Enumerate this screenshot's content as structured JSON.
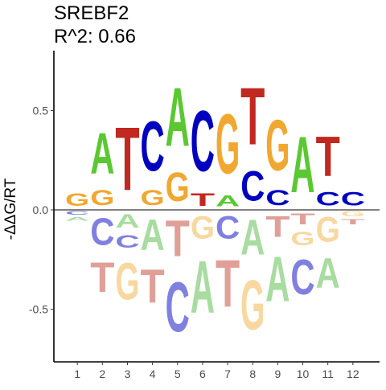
{
  "chart_data": {
    "type": "sequence-logo",
    "title": "SREBF2",
    "subtitle": "R^2: 0.66",
    "ylabel": "-ΔΔG/RT",
    "xlabel": "",
    "ylim": [
      -0.8,
      0.75
    ],
    "y_ticks": [
      -0.5,
      0.0,
      0.5
    ],
    "y_tick_labels": [
      "-0.5",
      "0.0",
      "0.5"
    ],
    "positions": [
      1,
      2,
      3,
      4,
      5,
      6,
      7,
      8,
      9,
      10,
      11,
      12
    ],
    "grid": false,
    "colors": {
      "A": "#5bc832",
      "C": "#0000c0",
      "G": "#f0a830",
      "T": "#c02820",
      "A_neg": "#a8dca0",
      "C_neg": "#8080e0",
      "G_neg": "#f8d8a0",
      "T_neg": "#e0a098"
    },
    "stacks": [
      {
        "pos": 1,
        "positive": [
          {
            "base": "G",
            "height": 0.1
          }
        ],
        "negative": [
          {
            "base": "C",
            "height": 0.03
          },
          {
            "base": "A",
            "height": 0.03
          }
        ]
      },
      {
        "pos": 2,
        "positive": [
          {
            "base": "G",
            "height": 0.12
          },
          {
            "base": "A",
            "height": 0.33
          }
        ],
        "negative": [
          {
            "base": "C",
            "height": 0.22
          },
          {
            "base": "T",
            "height": 0.24
          }
        ]
      },
      {
        "pos": 3,
        "positive": [
          {
            "base": "T",
            "height": 0.51
          }
        ],
        "negative": [
          {
            "base": "A",
            "height": 0.11
          },
          {
            "base": "C",
            "height": 0.1
          },
          {
            "base": "G",
            "height": 0.3
          }
        ]
      },
      {
        "pos": 4,
        "positive": [
          {
            "base": "G",
            "height": 0.12
          },
          {
            "base": "C",
            "height": 0.4
          }
        ],
        "negative": [
          {
            "base": "A",
            "height": 0.25
          },
          {
            "base": "T",
            "height": 0.27
          }
        ]
      },
      {
        "pos": 5,
        "positive": [
          {
            "base": "G",
            "height": 0.23
          },
          {
            "base": "A",
            "height": 0.47
          }
        ],
        "negative": [
          {
            "base": "T",
            "height": 0.29
          },
          {
            "base": "C",
            "height": 0.4
          }
        ]
      },
      {
        "pos": 6,
        "positive": [
          {
            "base": "T",
            "height": 0.1
          },
          {
            "base": "C",
            "height": 0.49
          }
        ],
        "negative": [
          {
            "base": "G",
            "height": 0.18
          },
          {
            "base": "A",
            "height": 0.42
          }
        ]
      },
      {
        "pos": 7,
        "positive": [
          {
            "base": "A",
            "height": 0.09
          },
          {
            "base": "G",
            "height": 0.48
          }
        ],
        "negative": [
          {
            "base": "C",
            "height": 0.18
          },
          {
            "base": "T",
            "height": 0.38
          }
        ]
      },
      {
        "pos": 8,
        "positive": [
          {
            "base": "C",
            "height": 0.24
          },
          {
            "base": "T",
            "height": 0.46
          }
        ],
        "negative": [
          {
            "base": "A",
            "height": 0.28
          },
          {
            "base": "G",
            "height": 0.4
          }
        ]
      },
      {
        "pos": 9,
        "positive": [
          {
            "base": "C",
            "height": 0.12
          },
          {
            "base": "G",
            "height": 0.41
          }
        ],
        "negative": [
          {
            "base": "T",
            "height": 0.17
          },
          {
            "base": "A",
            "height": 0.36
          }
        ]
      },
      {
        "pos": 10,
        "positive": [
          {
            "base": "A",
            "height": 0.45
          }
        ],
        "negative": [
          {
            "base": "T",
            "height": 0.09
          },
          {
            "base": "G",
            "height": 0.11
          },
          {
            "base": "C",
            "height": 0.28
          }
        ]
      },
      {
        "pos": 11,
        "positive": [
          {
            "base": "C",
            "height": 0.11
          },
          {
            "base": "T",
            "height": 0.32
          }
        ],
        "negative": [
          {
            "base": "G",
            "height": 0.2
          },
          {
            "base": "A",
            "height": 0.24
          }
        ]
      },
      {
        "pos": 12,
        "positive": [
          {
            "base": "C",
            "height": 0.11
          }
        ],
        "negative": [
          {
            "base": "G",
            "height": 0.04
          },
          {
            "base": "T",
            "height": 0.04
          }
        ]
      }
    ]
  }
}
